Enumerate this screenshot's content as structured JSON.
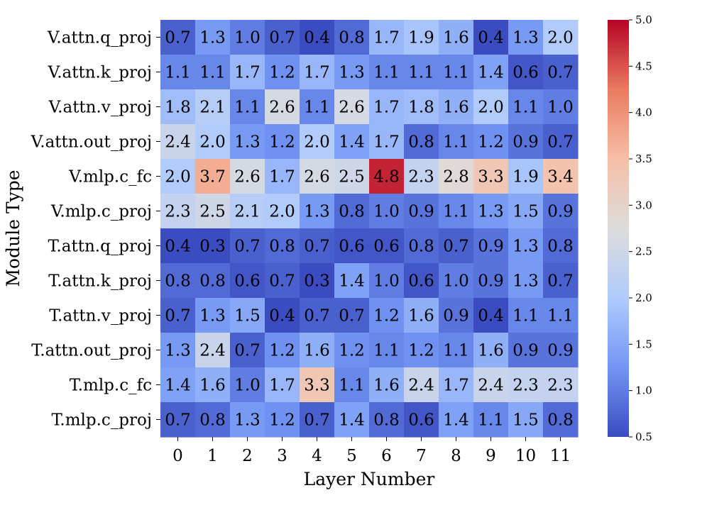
{
  "chart_data": {
    "type": "heatmap",
    "title": "",
    "xlabel": "Layer Number",
    "ylabel": "Module Type",
    "x_categories": [
      "0",
      "1",
      "2",
      "3",
      "4",
      "5",
      "6",
      "7",
      "8",
      "9",
      "10",
      "11"
    ],
    "y_categories": [
      "V.attn.q_proj",
      "V.attn.k_proj",
      "V.attn.v_proj",
      "V.attn.out_proj",
      "V.mlp.c_fc",
      "V.mlp.c_proj",
      "T.attn.q_proj",
      "T.attn.k_proj",
      "T.attn.v_proj",
      "T.attn.out_proj",
      "T.mlp.c_fc",
      "T.mlp.c_proj"
    ],
    "values": [
      [
        0.7,
        1.3,
        1.0,
        0.7,
        0.4,
        0.8,
        1.7,
        1.9,
        1.6,
        0.4,
        1.3,
        2.0
      ],
      [
        1.1,
        1.1,
        1.7,
        1.2,
        1.7,
        1.3,
        1.1,
        1.1,
        1.1,
        1.4,
        0.6,
        0.7
      ],
      [
        1.8,
        2.1,
        1.1,
        2.6,
        1.1,
        2.6,
        1.7,
        1.8,
        1.6,
        2.0,
        1.1,
        1.0
      ],
      [
        2.4,
        2.0,
        1.3,
        1.2,
        2.0,
        1.4,
        1.7,
        0.8,
        1.1,
        1.2,
        0.9,
        0.7
      ],
      [
        2.0,
        3.7,
        2.6,
        1.7,
        2.6,
        2.5,
        4.8,
        2.3,
        2.8,
        3.3,
        1.9,
        3.4
      ],
      [
        2.3,
        2.5,
        2.1,
        2.0,
        1.3,
        0.8,
        1.0,
        0.9,
        1.1,
        1.3,
        1.5,
        0.9
      ],
      [
        0.4,
        0.3,
        0.7,
        0.8,
        0.7,
        0.6,
        0.6,
        0.8,
        0.7,
        0.9,
        1.3,
        0.8
      ],
      [
        0.8,
        0.8,
        0.6,
        0.7,
        0.3,
        1.4,
        1.0,
        0.6,
        1.0,
        0.9,
        1.3,
        0.7
      ],
      [
        0.7,
        1.3,
        1.5,
        0.4,
        0.7,
        0.7,
        1.2,
        1.6,
        0.9,
        0.4,
        1.1,
        1.1
      ],
      [
        1.3,
        2.4,
        0.7,
        1.2,
        1.6,
        1.2,
        1.1,
        1.2,
        1.1,
        1.6,
        0.9,
        0.9
      ],
      [
        1.4,
        1.6,
        1.0,
        1.7,
        3.3,
        1.1,
        1.6,
        2.4,
        1.7,
        2.4,
        2.3,
        2.3
      ],
      [
        0.7,
        0.8,
        1.3,
        1.2,
        0.7,
        1.4,
        0.8,
        0.6,
        1.4,
        1.1,
        1.5,
        0.8
      ]
    ],
    "colormap": "coolwarm",
    "color_range": [
      0.5,
      5.0
    ],
    "colormap_stops": [
      "#3b4cc0",
      "#7396f5",
      "#b0cbfc",
      "#dddcdc",
      "#f6bfa6",
      "#ea7b60",
      "#b40426"
    ],
    "colorbar_ticks": [
      "0.5",
      "1.0",
      "1.5",
      "2.0",
      "2.5",
      "3.0",
      "3.5",
      "4.0",
      "4.5",
      "5.0"
    ],
    "grid": false,
    "legend": "colorbar-right"
  }
}
